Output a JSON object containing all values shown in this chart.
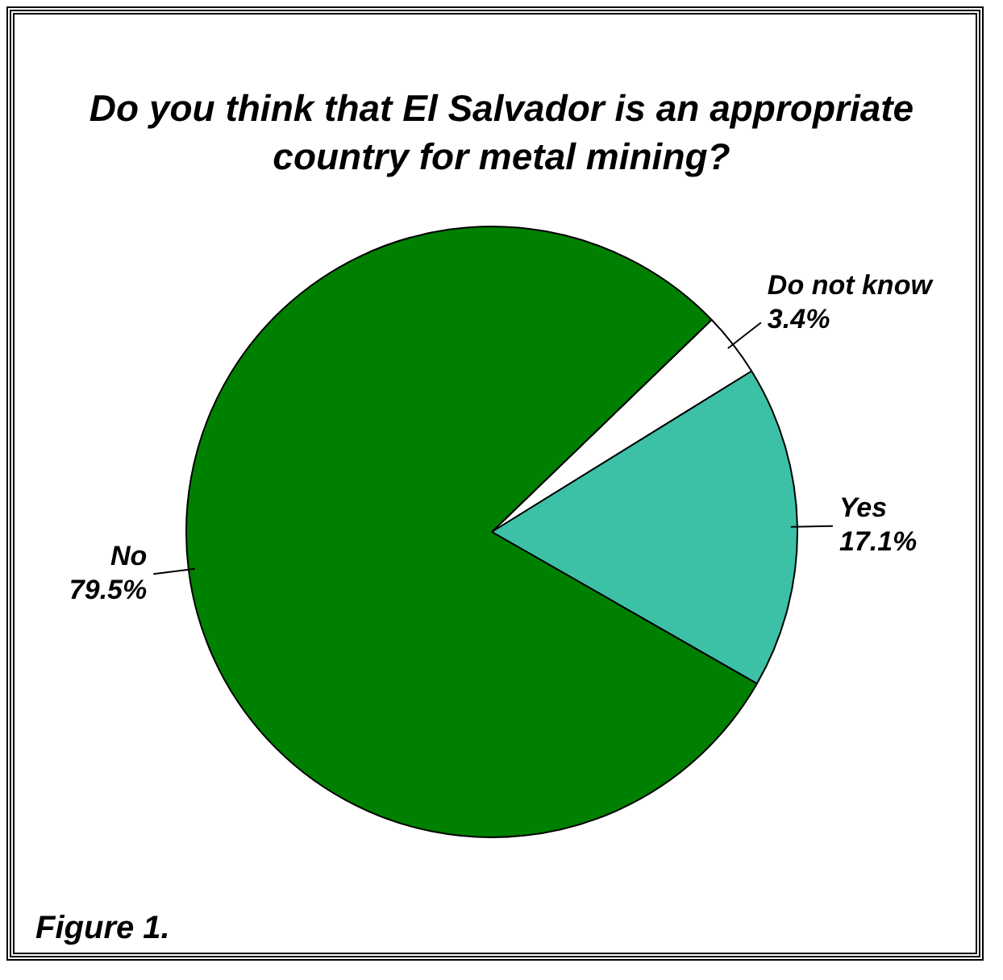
{
  "chart_data": {
    "type": "pie",
    "title": "Do you think that El Salvador is an appropriate country for metal mining?",
    "categories": [
      "Do not know",
      "Yes",
      "No"
    ],
    "values": [
      3.4,
      17.1,
      79.5
    ],
    "value_labels": [
      "3.4%",
      "17.1%",
      "79.5%"
    ],
    "colors": [
      "#ffffff",
      "#3cc0a6",
      "#008000"
    ],
    "legend": false,
    "annotations": [
      "Figure 1."
    ]
  }
}
